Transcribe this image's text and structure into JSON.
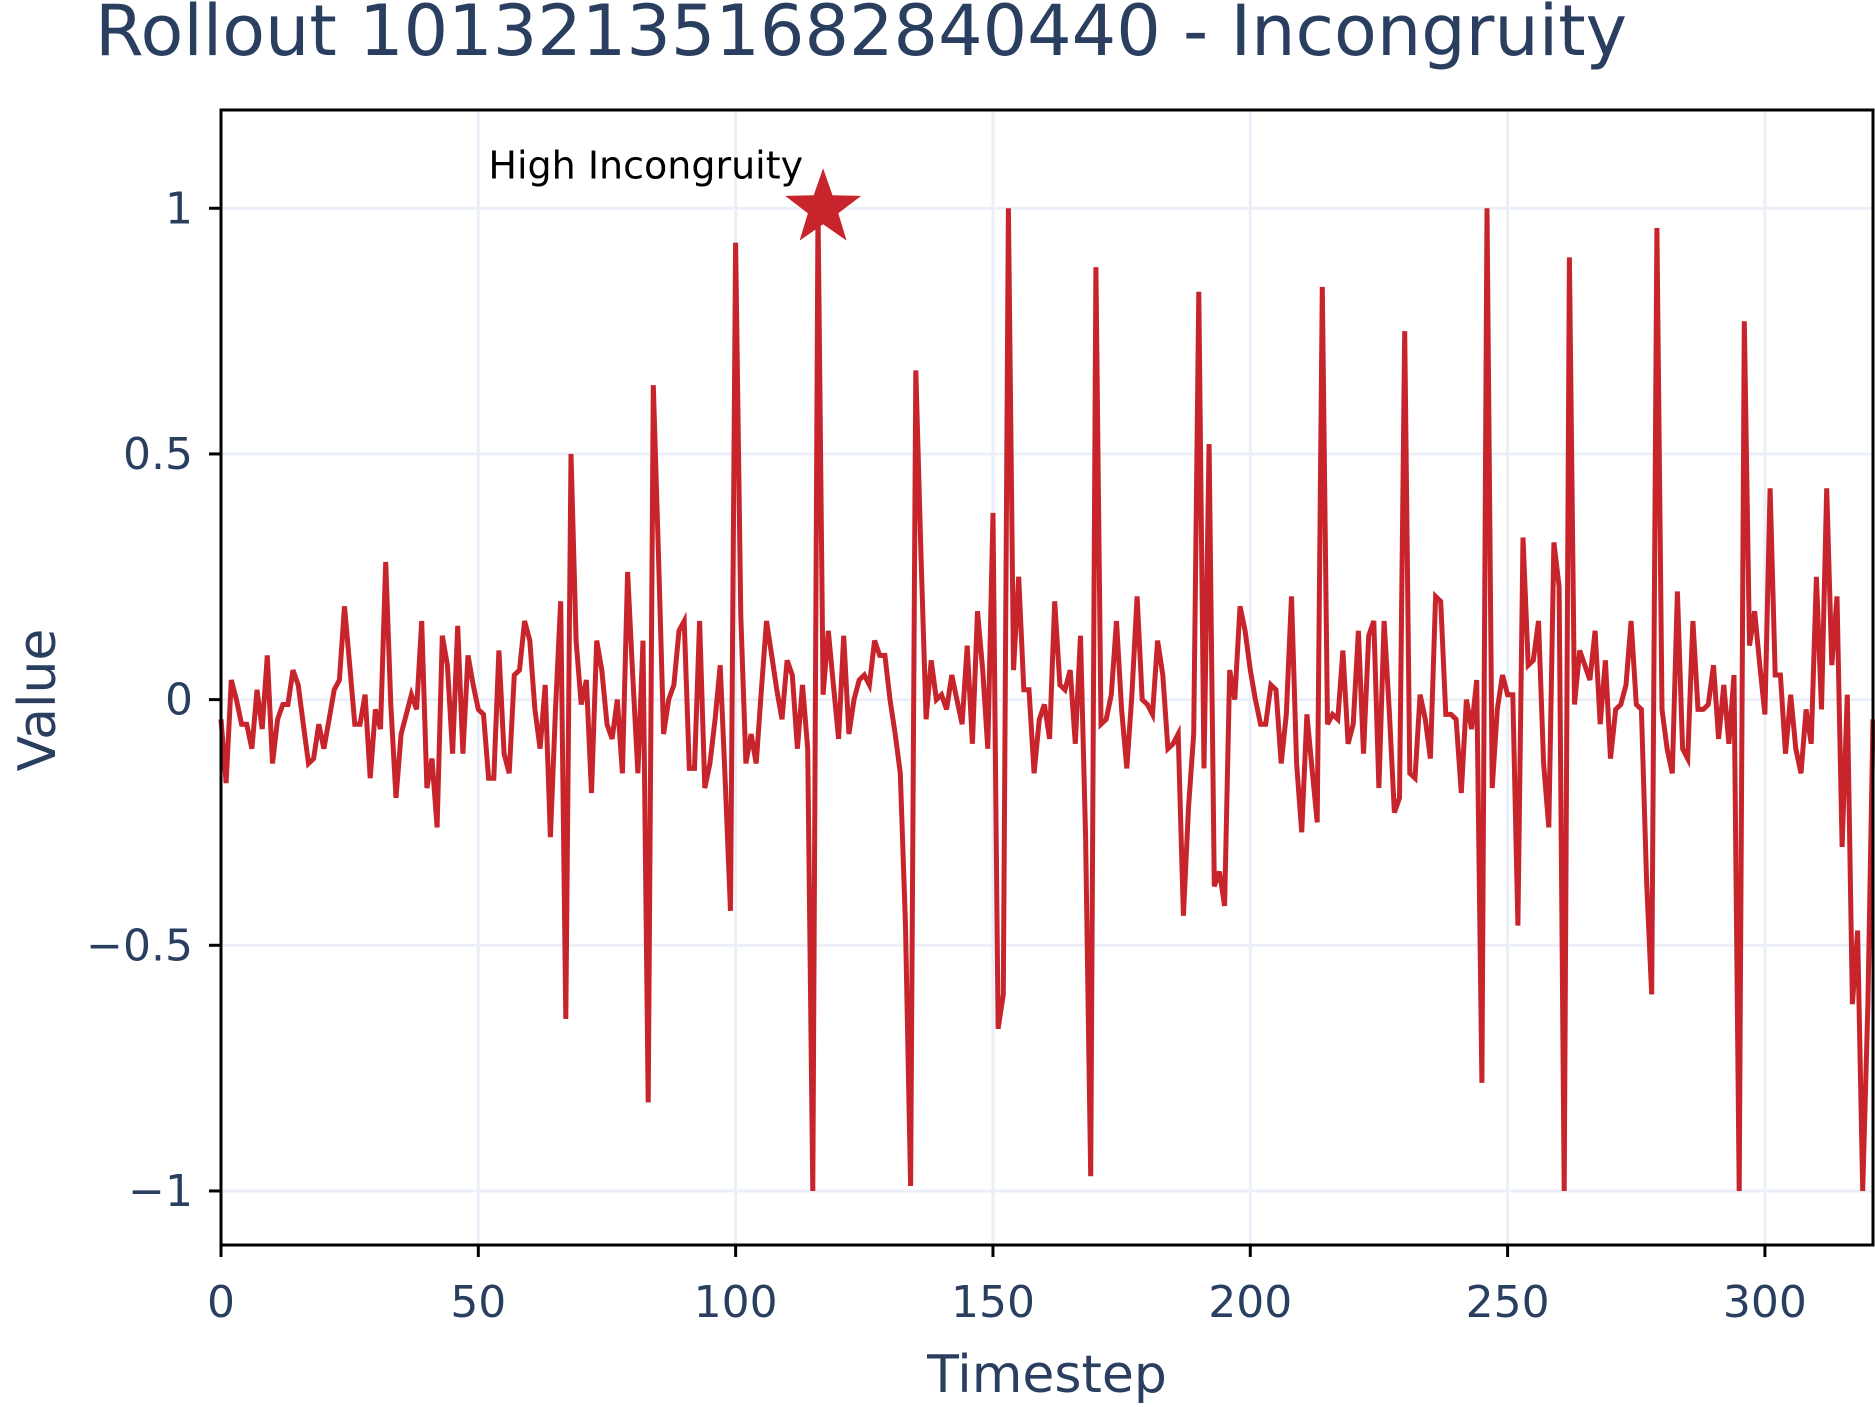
{
  "chart_data": {
    "type": "line",
    "title": "Rollout 1013213516828404​40 - Incongruity",
    "xlabel": "Timestep",
    "ylabel": "Value",
    "xlim": [
      0,
      321
    ],
    "ylim": [
      -1.11,
      1.2
    ],
    "x_ticks": [
      0,
      50,
      100,
      150,
      200,
      250,
      300
    ],
    "y_ticks": [
      -1,
      -0.5,
      0,
      0.5,
      1
    ],
    "x_tick_labels": [
      "0",
      "50",
      "100",
      "150",
      "200",
      "250",
      "300"
    ],
    "y_tick_labels": [
      "−1",
      "−0.5",
      "0",
      "0.5",
      "1"
    ],
    "grid": true,
    "line_color": "#c8242b",
    "series": [
      {
        "values": [
          -0.04,
          -0.17,
          0.04,
          0.0,
          -0.05,
          -0.05,
          -0.1,
          0.02,
          -0.06,
          0.09,
          -0.13,
          -0.04,
          -0.01,
          -0.01,
          0.06,
          0.03,
          -0.05,
          -0.13,
          -0.12,
          -0.05,
          -0.1,
          -0.04,
          0.02,
          0.04,
          0.19,
          0.07,
          -0.05,
          -0.05,
          0.01,
          -0.16,
          -0.02,
          -0.06,
          0.28,
          -0.01,
          -0.2,
          -0.07,
          -0.03,
          0.01,
          -0.02,
          0.16,
          -0.18,
          -0.12,
          -0.26,
          0.13,
          0.07,
          -0.11,
          0.15,
          -0.11,
          0.09,
          0.03,
          -0.02,
          -0.03,
          -0.16,
          -0.16,
          0.1,
          -0.11,
          -0.15,
          0.05,
          0.06,
          0.16,
          0.12,
          -0.02,
          -0.1,
          0.03,
          -0.28,
          -0.02,
          0.2,
          -0.65,
          0.5,
          0.12,
          -0.01,
          0.04,
          -0.19,
          0.12,
          0.06,
          -0.05,
          -0.08,
          0.0,
          -0.15,
          0.26,
          0.05,
          -0.15,
          0.12,
          -0.82,
          0.64,
          0.3,
          -0.07,
          0.0,
          0.03,
          0.14,
          0.16,
          -0.14,
          -0.14,
          0.16,
          -0.18,
          -0.13,
          -0.04,
          0.07,
          -0.17,
          -0.43,
          0.93,
          0.17,
          -0.13,
          -0.07,
          -0.13,
          0.02,
          0.16,
          0.09,
          0.02,
          -0.04,
          0.08,
          0.05,
          -0.1,
          0.03,
          -0.1,
          -1.0,
          1.0,
          0.01,
          0.14,
          0.03,
          -0.08,
          0.13,
          -0.07,
          0.0,
          0.04,
          0.05,
          0.03,
          0.12,
          0.09,
          0.09,
          0.0,
          -0.07,
          -0.15,
          -0.46,
          -0.99,
          0.67,
          0.3,
          -0.04,
          0.08,
          0.0,
          0.01,
          -0.02,
          0.05,
          0.0,
          -0.05,
          0.11,
          -0.09,
          0.18,
          0.06,
          -0.1,
          0.38,
          -0.67,
          -0.6,
          1.0,
          0.06,
          0.25,
          0.02,
          0.02,
          -0.15,
          -0.04,
          -0.01,
          -0.08,
          0.2,
          0.03,
          0.02,
          0.06,
          -0.09,
          0.13,
          -0.28,
          -0.97,
          0.88,
          -0.05,
          -0.04,
          0.01,
          0.16,
          -0.02,
          -0.14,
          0.01,
          0.21,
          0.0,
          -0.01,
          -0.03,
          0.12,
          0.05,
          -0.1,
          -0.09,
          -0.07,
          -0.44,
          -0.22,
          -0.07,
          0.83,
          -0.14,
          0.52,
          -0.38,
          -0.35,
          -0.42,
          0.06,
          0.0,
          0.19,
          0.14,
          0.06,
          0.0,
          -0.05,
          -0.05,
          0.03,
          0.02,
          -0.13,
          -0.03,
          0.21,
          -0.13,
          -0.27,
          -0.03,
          -0.14,
          -0.25,
          0.84,
          -0.05,
          -0.03,
          -0.04,
          0.1,
          -0.09,
          -0.05,
          0.14,
          -0.11,
          0.13,
          0.16,
          -0.18,
          0.16,
          -0.02,
          -0.23,
          -0.2,
          0.75,
          -0.15,
          -0.16,
          0.01,
          -0.04,
          -0.12,
          0.21,
          0.2,
          -0.03,
          -0.03,
          -0.04,
          -0.19,
          0.0,
          -0.06,
          0.04,
          -0.78,
          1.0,
          -0.18,
          -0.02,
          0.05,
          0.01,
          0.01,
          -0.46,
          0.33,
          0.07,
          0.08,
          0.16,
          -0.13,
          -0.26,
          0.32,
          0.23,
          -1.0,
          0.9,
          -0.01,
          0.1,
          0.07,
          0.04,
          0.14,
          -0.05,
          0.08,
          -0.12,
          -0.02,
          -0.01,
          0.03,
          0.16,
          -0.01,
          -0.02,
          -0.37,
          -0.6,
          0.96,
          -0.02,
          -0.1,
          -0.15,
          0.22,
          -0.1,
          -0.12,
          0.16,
          -0.02,
          -0.02,
          -0.01,
          0.07,
          -0.08,
          0.03,
          -0.09,
          0.05,
          -1.0,
          0.77,
          0.11,
          0.18,
          0.07,
          -0.03,
          0.43,
          0.05,
          0.05,
          -0.11,
          0.01,
          -0.1,
          -0.15,
          -0.02,
          -0.09,
          0.25,
          -0.02,
          0.43,
          0.07,
          0.21,
          -0.3,
          0.01,
          -0.62,
          -0.47,
          -1.0,
          -0.62,
          -0.04
        ]
      }
    ],
    "annotation": {
      "text": "High Incongruity",
      "x": 117,
      "y": 1.0,
      "marker": "star"
    }
  }
}
